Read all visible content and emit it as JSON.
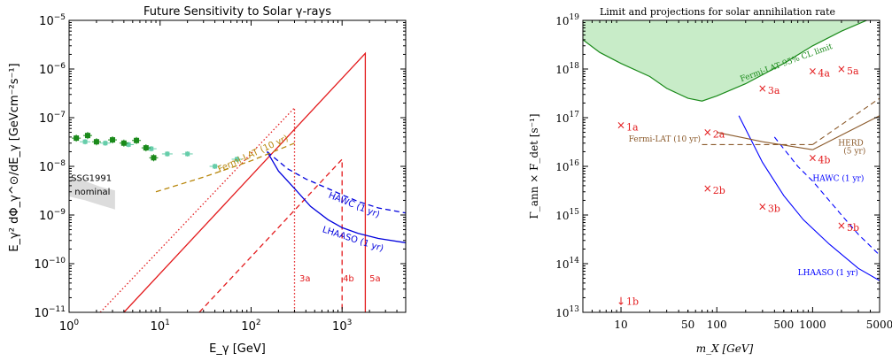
{
  "chart_data": [
    {
      "type": "line",
      "title": "Future Sensitivity to Solar γ-rays",
      "xlabel": "E_γ [GeV]",
      "ylabel": "E_γ² dΦ_γ^⊙/dE_γ [GeVcm⁻²s⁻¹]",
      "xscale": "log",
      "yscale": "log",
      "xlim": [
        1,
        5000
      ],
      "ylim": [
        1e-11,
        1e-05
      ],
      "x_ticks": [
        {
          "v": 1,
          "base": "10",
          "exp": "0"
        },
        {
          "v": 10,
          "base": "10",
          "exp": "1"
        },
        {
          "v": 100,
          "base": "10",
          "exp": "2"
        },
        {
          "v": 1000,
          "base": "10",
          "exp": "3"
        }
      ],
      "y_ticks": [
        {
          "v": 1e-11,
          "base": "10",
          "exp": "−11"
        },
        {
          "v": 1e-10,
          "base": "10",
          "exp": "−10"
        },
        {
          "v": 1e-09,
          "base": "10",
          "exp": "−9"
        },
        {
          "v": 1e-08,
          "base": "10",
          "exp": "−8"
        },
        {
          "v": 1e-07,
          "base": "10",
          "exp": "−7"
        },
        {
          "v": 1e-06,
          "base": "10",
          "exp": "−6"
        },
        {
          "v": 1e-05,
          "base": "10",
          "exp": "−5"
        }
      ],
      "series": [
        {
          "name": "3a",
          "color": "#e31a1c",
          "dash": "dotted",
          "x": [
            2.2,
            300,
            300
          ],
          "y": [
            1e-11,
            1.6e-07,
            1e-11
          ]
        },
        {
          "name": "5a",
          "color": "#e31a1c",
          "dash": "solid",
          "x": [
            4,
            1800,
            1800
          ],
          "y": [
            1e-11,
            2.1e-06,
            1e-11
          ]
        },
        {
          "name": "4b",
          "color": "#e31a1c",
          "dash": "dashed",
          "x": [
            27,
            1000,
            1000
          ],
          "y": [
            1e-11,
            1.4e-08,
            1e-11
          ]
        },
        {
          "name": "HAWC (1 yr)",
          "color": "#0000dd",
          "dash": "dashed",
          "x": [
            150,
            250,
            400,
            700,
            1000,
            1500,
            2500,
            5000
          ],
          "y": [
            2e-08,
            9e-09,
            5.5e-09,
            3.5e-09,
            2.6e-09,
            1.9e-09,
            1.4e-09,
            1.1e-09
          ]
        },
        {
          "name": "LHAASO (1 yr)",
          "color": "#0000dd",
          "dash": "solid",
          "x": [
            150,
            200,
            300,
            450,
            700,
            1000,
            1500,
            2500,
            5000
          ],
          "y": [
            2e-08,
            8e-09,
            3.5e-09,
            1.5e-09,
            8e-10,
            5.5e-10,
            4.2e-10,
            3.3e-10,
            2.7e-10
          ]
        },
        {
          "name": "Fermi-LAT (10 yr)",
          "color": "#b8860b",
          "dash": "dashed",
          "x": [
            9,
            30,
            100,
            300
          ],
          "y": [
            3e-09,
            6e-09,
            1.3e-08,
            3e-08
          ]
        }
      ],
      "points_dark": {
        "name": "",
        "color": "#1a8a1a",
        "x": [
          1.2,
          1.6,
          2.0,
          3.0,
          4.0,
          5.5,
          7.0,
          8.5
        ],
        "y": [
          3.8e-08,
          4.3e-08,
          3.2e-08,
          3.5e-08,
          3e-08,
          3.4e-08,
          2.4e-08,
          1.5e-08
        ]
      },
      "points_light": {
        "name": "",
        "color": "#66cdaa",
        "x": [
          1.5,
          2.5,
          4.5,
          8.0,
          12.0,
          20.0,
          40.0,
          70.0
        ],
        "y": [
          3.2e-08,
          3e-08,
          2.8e-08,
          2.3e-08,
          1.8e-08,
          1.8e-08,
          1e-08,
          1.4e-08
        ]
      },
      "band": {
        "x": [
          1,
          1.5,
          2.2,
          3.2,
          3.2,
          2.2,
          1.5,
          1
        ],
        "y": [
          6e-09,
          5e-09,
          3.8e-09,
          3.2e-09,
          1.3e-09,
          1.6e-09,
          2e-09,
          2.4e-09
        ]
      },
      "annotations": [
        {
          "text": "SSG1991",
          "x": 1.05,
          "y": 5e-09,
          "color": "#000"
        },
        {
          "text": "nominal",
          "x": 1.15,
          "y": 2.6e-09,
          "color": "#000"
        },
        {
          "text": "3a",
          "x": 340,
          "y": 4.3e-11,
          "color": "#e31a1c"
        },
        {
          "text": "4b",
          "x": 1020,
          "y": 4.3e-11,
          "color": "#e31a1c"
        },
        {
          "text": "5a",
          "x": 2000,
          "y": 4.3e-11,
          "color": "#e31a1c"
        },
        {
          "text": "HAWC (1 yr)",
          "x": 700,
          "y": 2.3e-09,
          "color": "#0000dd",
          "rot": 22
        },
        {
          "text": "LHAASO (1 yr)",
          "x": 600,
          "y": 4.5e-10,
          "color": "#0000dd",
          "rot": 18
        },
        {
          "text": "Fermi-LAT (10 yr)",
          "x": 45,
          "y": 7.5e-09,
          "color": "#b8860b",
          "rot": -25
        }
      ]
    },
    {
      "type": "line",
      "title": "Limit and projections for solar annihilation rate",
      "xlabel": "m_X [GeV]",
      "ylabel": "Γ_ann × F_det [s⁻¹]",
      "xscale": "log",
      "yscale": "log",
      "xlim": [
        4,
        5000
      ],
      "ylim": [
        10000000000000.0,
        1e+19
      ],
      "x_ticks": [
        {
          "v": 10,
          "label": "10"
        },
        {
          "v": 50,
          "label": "50"
        },
        {
          "v": 100,
          "label": "100"
        },
        {
          "v": 500,
          "label": "500"
        },
        {
          "v": 1000,
          "label": "1000"
        },
        {
          "v": 5000,
          "label": "5000"
        }
      ],
      "y_ticks": [
        {
          "v": 10000000000000.0,
          "base": "10",
          "exp": "13"
        },
        {
          "v": 100000000000000.0,
          "base": "10",
          "exp": "14"
        },
        {
          "v": 1000000000000000.0,
          "base": "10",
          "exp": "15"
        },
        {
          "v": 1e+16,
          "base": "10",
          "exp": "16"
        },
        {
          "v": 1e+17,
          "base": "10",
          "exp": "17"
        },
        {
          "v": 1e+18,
          "base": "10",
          "exp": "18"
        },
        {
          "v": 1e+19,
          "base": "10",
          "exp": "19"
        }
      ],
      "fermi_limit": {
        "name": "Fermi-LAT 95% CL limit",
        "x": [
          4,
          6,
          10,
          20,
          30,
          50,
          70,
          100,
          200,
          500,
          1000,
          2000,
          5000
        ],
        "y": [
          4e+18,
          2.2e+18,
          1.3e+18,
          7e+17,
          4e+17,
          2.5e+17,
          2.2e+17,
          2.8e+17,
          5e+17,
          1.3e+18,
          3e+18,
          6e+18,
          1.3e+19
        ]
      },
      "series": [
        {
          "name": "HAWC (1 yr)",
          "color": "#0000ff",
          "dash": "dashed",
          "x": [
            400,
            700,
            1000,
            2000,
            3000,
            5000
          ],
          "y": [
            4e+16,
            1e+16,
            5000000000000000.0,
            1000000000000000.0,
            400000000000000.0,
            150000000000000.0
          ]
        },
        {
          "name": "LHAASO (1 yr)",
          "color": "#0000ff",
          "dash": "solid",
          "x": [
            170,
            220,
            300,
            500,
            800,
            1500,
            3000,
            5000
          ],
          "y": [
            1.1e+17,
            4e+16,
            1.2e+16,
            2500000000000000.0,
            800000000000000.0,
            250000000000000.0,
            80000000000000.0,
            45000000000000.0
          ]
        },
        {
          "name": "Fermi-LAT (10 yr)",
          "color": "#8b5a2b",
          "dash": "solid",
          "x": [
            100,
            300,
            1000
          ],
          "y": [
            5e+16,
            3.2e+16,
            2.2e+16
          ]
        },
        {
          "name": "Fermi-LAT (10 yr) dashed",
          "color": "#8b5a2b",
          "dash": "dashed",
          "x": [
            70,
            300,
            1000
          ],
          "y": [
            2.8e+16,
            2.8e+16,
            2.8e+16
          ]
        },
        {
          "name": "HERD (5 yr)",
          "color": "#8b5a2b",
          "dash": "solid",
          "x": [
            1000,
            5000
          ],
          "y": [
            2.2e+16,
            1.1e+17
          ]
        },
        {
          "name": "HERD (5 yr) dashed",
          "color": "#8b5a2b",
          "dash": "dashed",
          "x": [
            1000,
            5000
          ],
          "y": [
            2.8e+16,
            2.5e+17
          ]
        }
      ],
      "markers": [
        {
          "label": "1a",
          "x": 10,
          "y": 7e+16
        },
        {
          "label": "2a",
          "x": 80,
          "y": 5e+16
        },
        {
          "label": "2b",
          "x": 80,
          "y": 3500000000000000.0
        },
        {
          "label": "3a",
          "x": 300,
          "y": 4e+17
        },
        {
          "label": "3b",
          "x": 300,
          "y": 1500000000000000.0
        },
        {
          "label": "4a",
          "x": 1000,
          "y": 9e+17
        },
        {
          "label": "4b",
          "x": 1000,
          "y": 1.5e+16
        },
        {
          "label": "5a",
          "x": 2000,
          "y": 1e+18
        },
        {
          "label": "5b",
          "x": 2000,
          "y": 600000000000000.0
        }
      ],
      "arrow_marker": {
        "label": "1b",
        "x": 10,
        "y": 17000000000000.0
      },
      "annotations": [
        {
          "text": "Fermi-LAT 95% CL limit",
          "x": 180,
          "y": 5.5e+17,
          "color": "#1a8a1a",
          "rot": -20
        },
        {
          "text": "Fermi-LAT (10 yr)",
          "x": 12,
          "y": 3.2e+16,
          "color": "#8b5a2b"
        },
        {
          "text": "HERD",
          "x": 1850,
          "y": 2.7e+16,
          "color": "#8b5a2b"
        },
        {
          "text": "(5 yr)",
          "x": 2100,
          "y": 1.85e+16,
          "color": "#8b5a2b"
        },
        {
          "text": "HAWC (1 yr)",
          "x": 1000,
          "y": 5000000000000000.0,
          "color": "#0000ff"
        },
        {
          "text": "LHAASO (1 yr)",
          "x": 700,
          "y": 58000000000000.0,
          "color": "#0000ff"
        }
      ]
    }
  ]
}
